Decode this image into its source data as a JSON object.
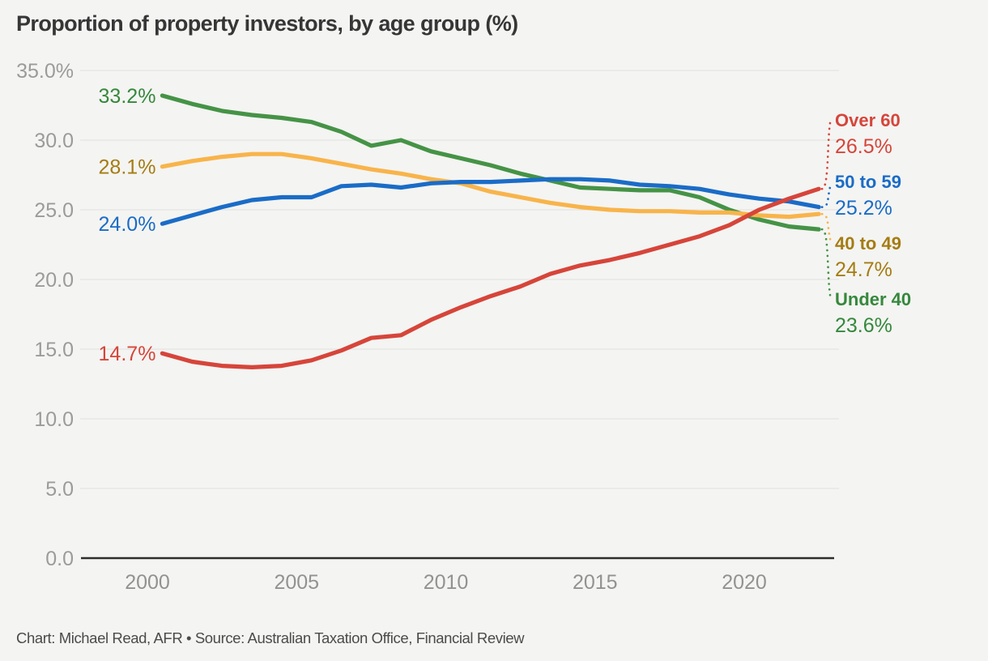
{
  "title": "Proportion of property investors, by age group (%)",
  "footer": "Chart: Michael Read, AFR • Source: Australian Taxation Office, Financial Review",
  "colors": {
    "background": "#f4f4f2",
    "title_text": "#363636",
    "footer_text": "#4b4b4b",
    "axis_tick_text": "#9b9b99",
    "gridline": "#e3e3e1",
    "baseline": "#2e2d2c"
  },
  "chart_data": {
    "type": "line",
    "title": "Proportion of property investors, by age group (%)",
    "xlabel": "",
    "ylabel": "",
    "grid": "horizontal",
    "legend_position": "right-edge-labels",
    "x": [
      2000.5,
      2001.5,
      2002.5,
      2003.5,
      2004.5,
      2005.5,
      2006.5,
      2007.5,
      2008.5,
      2009.5,
      2010.5,
      2011.5,
      2012.5,
      2013.5,
      2014.5,
      2015.5,
      2016.5,
      2017.5,
      2018.5,
      2019.5,
      2020.5,
      2021.5,
      2022.5
    ],
    "x_ticks": [
      {
        "value": 2000,
        "label": "2000"
      },
      {
        "value": 2005,
        "label": "2005"
      },
      {
        "value": 2010,
        "label": "2010"
      },
      {
        "value": 2015,
        "label": "2015"
      },
      {
        "value": 2020,
        "label": "2020"
      }
    ],
    "y_ticks": [
      {
        "value": 35,
        "label": "35.0%"
      },
      {
        "value": 30,
        "label": "30.0"
      },
      {
        "value": 25,
        "label": "25.0"
      },
      {
        "value": 20,
        "label": "20.0"
      },
      {
        "value": 15,
        "label": "15.0"
      },
      {
        "value": 10,
        "label": "10.0"
      },
      {
        "value": 5,
        "label": "5.0"
      },
      {
        "value": 0,
        "label": "0.0"
      }
    ],
    "ylim": [
      0,
      35
    ],
    "series": [
      {
        "name": "Over 60",
        "slug": "over-60",
        "line_color": "#d6453a",
        "text_color": "#d6453a",
        "start_label": "14.7%",
        "end_label": "26.5%",
        "values": [
          14.7,
          14.1,
          13.8,
          13.7,
          13.8,
          14.2,
          14.9,
          15.8,
          16.0,
          17.1,
          18.0,
          18.8,
          19.5,
          20.4,
          21.0,
          21.4,
          21.9,
          22.5,
          23.1,
          23.9,
          25.0,
          25.8,
          26.5
        ]
      },
      {
        "name": "50 to 59",
        "slug": "50-to-59",
        "line_color": "#1a6cc7",
        "text_color": "#1a6cc7",
        "start_label": "24.0%",
        "end_label": "25.2%",
        "values": [
          24.0,
          24.6,
          25.2,
          25.7,
          25.9,
          25.9,
          26.7,
          26.8,
          26.6,
          26.9,
          27.0,
          27.0,
          27.1,
          27.2,
          27.2,
          27.1,
          26.8,
          26.7,
          26.5,
          26.1,
          25.8,
          25.6,
          25.2
        ]
      },
      {
        "name": "40 to 49",
        "slug": "40-to-49",
        "line_color": "#f8b44b",
        "text_color": "#a57c12",
        "start_label": "28.1%",
        "end_label": "24.7%",
        "values": [
          28.1,
          28.5,
          28.8,
          29.0,
          29.0,
          28.7,
          28.3,
          27.9,
          27.6,
          27.2,
          26.9,
          26.3,
          25.9,
          25.5,
          25.2,
          25.0,
          24.9,
          24.9,
          24.8,
          24.8,
          24.6,
          24.5,
          24.7
        ]
      },
      {
        "name": "Under 40",
        "slug": "under-40",
        "line_color": "#459346",
        "text_color": "#35883c",
        "start_label": "33.2%",
        "end_label": "23.6%",
        "values": [
          33.2,
          32.6,
          32.1,
          31.8,
          31.6,
          31.3,
          30.6,
          29.6,
          30.0,
          29.2,
          28.7,
          28.2,
          27.6,
          27.1,
          26.6,
          26.5,
          26.4,
          26.4,
          25.9,
          25.0,
          24.3,
          23.8,
          23.6
        ]
      }
    ]
  }
}
